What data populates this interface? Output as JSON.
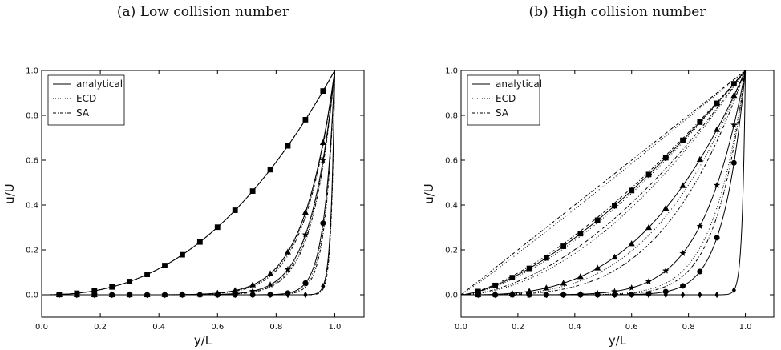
{
  "chart_data": [
    {
      "type": "line",
      "caption": "(a) Low collision number",
      "xlabel": "y/L",
      "ylabel": "u/U",
      "xlim": [
        0,
        1.1
      ],
      "ylim": [
        -0.1,
        1.0
      ],
      "xticks": [
        "0.0",
        "0.2",
        "0.4",
        "0.6",
        "0.8",
        "1.0"
      ],
      "yticks": [
        "0.0",
        "0.2",
        "0.4",
        "0.6",
        "0.8",
        "1.0"
      ],
      "legend": {
        "position": "top-left",
        "entries": [
          "analytical",
          "ECD",
          "SA"
        ]
      },
      "markers": [
        "square",
        "triangle",
        "star",
        "circle",
        "diamond"
      ],
      "series": [
        {
          "marker": "square",
          "exponent": 2.35,
          "ecd_exponent": 2.35,
          "sa_exponent": 2.35
        },
        {
          "marker": "triangle",
          "exponent": 9.5,
          "ecd_exponent": 9.7,
          "sa_exponent": 10.0
        },
        {
          "marker": "star",
          "exponent": 12.5,
          "ecd_exponent": 13.0,
          "sa_exponent": 13.5
        },
        {
          "marker": "circle",
          "exponent": 28.0,
          "ecd_exponent": 30.0,
          "sa_exponent": 32.0
        },
        {
          "marker": "diamond",
          "exponent": 80.0,
          "ecd_exponent": 85.0,
          "sa_exponent": 90.0
        }
      ]
    },
    {
      "type": "line",
      "caption": "(b) High collision number",
      "xlabel": "y/L",
      "ylabel": "u/U",
      "xlim": [
        0,
        1.1
      ],
      "ylim": [
        -0.1,
        1.0
      ],
      "xticks": [
        "0.0",
        "0.2",
        "0.4",
        "0.6",
        "0.8",
        "1.0"
      ],
      "yticks": [
        "0.0",
        "0.2",
        "0.4",
        "0.6",
        "0.8",
        "1.0"
      ],
      "legend": {
        "position": "top-left",
        "entries": [
          "analytical",
          "ECD",
          "SA"
        ]
      },
      "markers": [
        "square",
        "triangle",
        "star",
        "circle",
        "diamond"
      ],
      "series": [
        {
          "marker": "square",
          "exponent": 1.5,
          "ecd_exponent": 1.05,
          "sa_exponent": 1.0
        },
        {
          "marker": "triangle",
          "exponent": 2.9,
          "ecd_exponent": 1.55,
          "sa_exponent": 1.45
        },
        {
          "marker": "star",
          "exponent": 6.8,
          "ecd_exponent": 1.85,
          "sa_exponent": 1.75
        },
        {
          "marker": "circle",
          "exponent": 13.0,
          "ecd_exponent": 3.2,
          "sa_exponent": 3.6
        },
        {
          "marker": "diamond",
          "exponent": 95.0,
          "ecd_exponent": 9.0,
          "sa_exponent": 10.0
        }
      ]
    }
  ]
}
